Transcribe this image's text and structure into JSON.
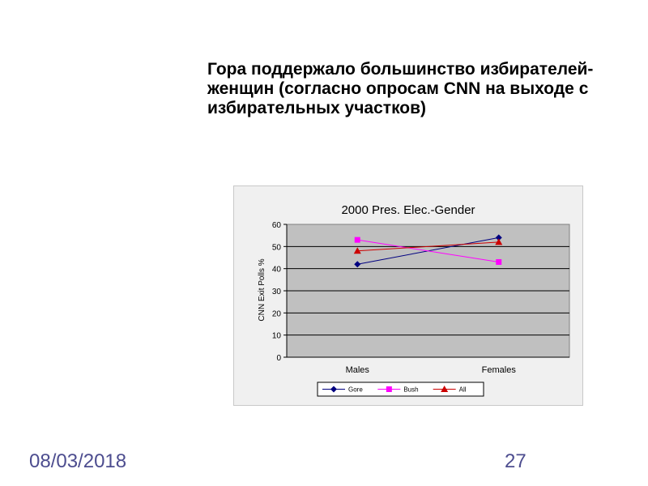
{
  "slide": {
    "headline_lines": [
      "Гора поддержало большинство избирателей-",
      "женщин (согласно опросам CNN на выходе с",
      "избирательных участков)"
    ],
    "date": "08/03/2018",
    "page_number": "27"
  },
  "chart_data": {
    "type": "line",
    "title": "2000 Pres. Elec.-Gender",
    "xlabel": "",
    "ylabel": "CNN Exit Polls %",
    "categories": [
      "Males",
      "Females"
    ],
    "ylim": [
      0,
      60
    ],
    "yticks": [
      "0",
      "10",
      "20",
      "30",
      "40",
      "50",
      "60"
    ],
    "grid": true,
    "legend_position": "bottom",
    "series": [
      {
        "name": "Gore",
        "values": [
          42,
          54
        ],
        "color": "#000080",
        "marker": "diamond"
      },
      {
        "name": "Bush",
        "values": [
          53,
          43
        ],
        "color": "#ff00ff",
        "marker": "square"
      },
      {
        "name": "All",
        "values": [
          48,
          52
        ],
        "color": "#cc0000",
        "marker": "triangle"
      }
    ],
    "plot_background": "#c0c0c0"
  }
}
